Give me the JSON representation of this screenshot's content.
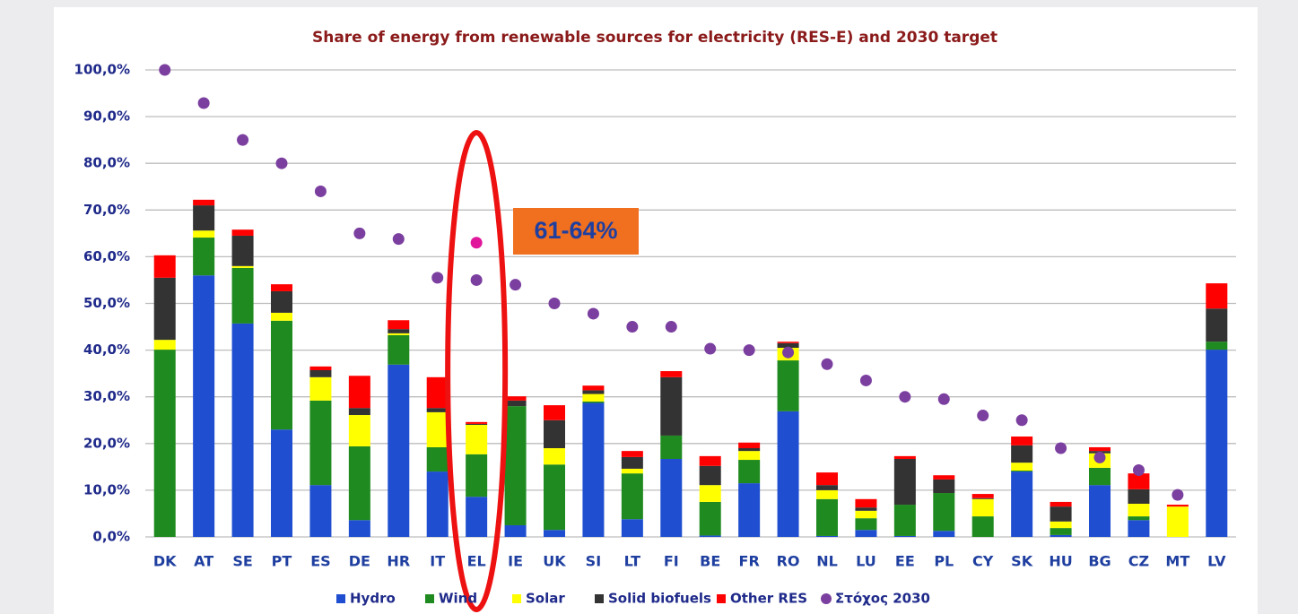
{
  "chart_data": {
    "type": "bar",
    "stacked": true,
    "title": "Share of energy from renewable sources for electricity (RES-E) and 2030 target",
    "categories": [
      "DK",
      "AT",
      "SE",
      "PT",
      "ES",
      "DE",
      "HR",
      "IT",
      "EL",
      "IE",
      "UK",
      "SI",
      "LT",
      "FI",
      "BE",
      "FR",
      "RO",
      "NL",
      "LU",
      "EE",
      "PL",
      "CY",
      "SK",
      "HU",
      "BG",
      "CZ",
      "MT",
      "LV"
    ],
    "series": [
      {
        "name": "Hydro",
        "type": "bar",
        "color": "#1f4fd0",
        "values": [
          0,
          56,
          45.7,
          23,
          11.1,
          3.6,
          36.9,
          14,
          8.6,
          2.5,
          1.5,
          28.7,
          3.8,
          16.7,
          0.3,
          11.5,
          26.9,
          0.2,
          1.5,
          0.2,
          1.3,
          0,
          14,
          0.4,
          11.1,
          3.6,
          0,
          40.1
        ]
      },
      {
        "name": "Wind",
        "type": "bar",
        "color": "#1f8a1f",
        "values": [
          40.1,
          8.1,
          11.9,
          23.3,
          18.1,
          15.8,
          6.3,
          5.2,
          9.1,
          25.5,
          14,
          0.3,
          9.8,
          5,
          7.2,
          5,
          10.9,
          7.9,
          2.5,
          6.7,
          8.1,
          4.4,
          0.2,
          1.5,
          3.7,
          0.8,
          0,
          1.7
        ]
      },
      {
        "name": "Solar",
        "type": "bar",
        "color": "#ffff00",
        "values": [
          2.1,
          1.5,
          0.4,
          1.7,
          5,
          6.7,
          0.4,
          7.5,
          6.3,
          0,
          3.5,
          1.6,
          1,
          0,
          3.6,
          1.9,
          2.7,
          1.9,
          1.6,
          0,
          0,
          3.7,
          1.7,
          1.4,
          3.1,
          2.7,
          6.5,
          0
        ]
      },
      {
        "name": "Solid biofuels",
        "type": "bar",
        "color": "#333333",
        "values": [
          13.3,
          5.4,
          6.5,
          4.6,
          1.5,
          1.5,
          0.9,
          0.9,
          0.2,
          1.2,
          6,
          0.8,
          2.5,
          12.5,
          4.1,
          0.6,
          1,
          1.1,
          0.7,
          9.8,
          2.9,
          0.2,
          3.7,
          3.2,
          0.5,
          3.1,
          0,
          7.1
        ]
      },
      {
        "name": "Other RES",
        "type": "bar",
        "color": "#ff0000",
        "values": [
          4.8,
          1.2,
          1.3,
          1.5,
          0.8,
          6.9,
          1.9,
          6.6,
          0.4,
          0.9,
          3.2,
          1,
          1.3,
          1.3,
          2.1,
          1.2,
          0.3,
          2.7,
          1.8,
          0.6,
          0.9,
          0.9,
          1.9,
          1,
          0.8,
          3.4,
          0.4,
          5.4
        ]
      },
      {
        "name": "Στόχος 2030",
        "type": "scatter",
        "color": "#7b3fa0",
        "values": [
          100,
          92.9,
          85,
          80,
          74,
          65,
          63.8,
          55.5,
          55,
          54,
          50,
          47.8,
          45,
          45,
          40.3,
          40,
          39.5,
          37,
          33.5,
          30,
          29.5,
          26,
          25,
          19,
          17,
          14.3,
          9,
          null
        ]
      }
    ],
    "highlight": {
      "category_index": 8,
      "value": 63,
      "color": "#e0179b",
      "label": "61-64%"
    },
    "ylim": [
      0,
      100
    ],
    "yticks": [
      {
        "value": 0,
        "label": "0,0%"
      },
      {
        "value": 10,
        "label": "10,0%"
      },
      {
        "value": 20,
        "label": "20,0%"
      },
      {
        "value": 30,
        "label": "30,0%"
      },
      {
        "value": 40,
        "label": "40,0%"
      },
      {
        "value": 50,
        "label": "50,0%"
      },
      {
        "value": 60,
        "label": "60,0%"
      },
      {
        "value": 70,
        "label": "70,0%"
      },
      {
        "value": 80,
        "label": "80,0%"
      },
      {
        "value": 90,
        "label": "90,0%"
      },
      {
        "value": 100,
        "label": "100,0%"
      }
    ],
    "grid": true,
    "legend": "bottom"
  }
}
